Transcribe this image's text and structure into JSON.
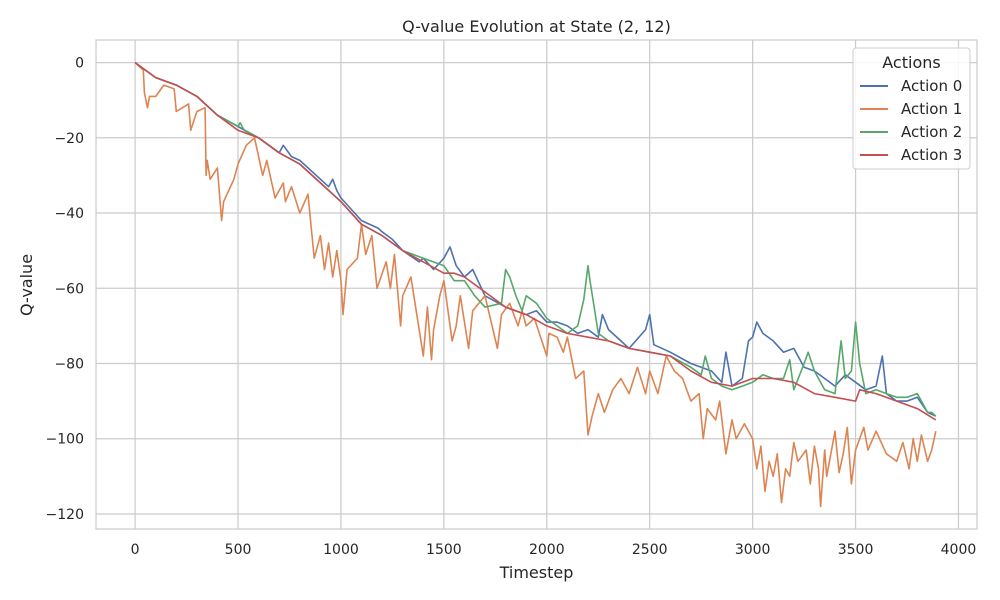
{
  "chart_data": {
    "type": "line",
    "title": "Q-value Evolution at State (2, 12)",
    "xlabel": "Timestep",
    "ylabel": "Q-value",
    "xlim": [
      -190,
      4090
    ],
    "ylim": [
      -124,
      6
    ],
    "xticks": [
      0,
      500,
      1000,
      1500,
      2000,
      2500,
      3000,
      3500,
      4000
    ],
    "yticks": [
      0,
      -20,
      -40,
      -60,
      -80,
      -100,
      -120
    ],
    "grid": true,
    "legend": {
      "title": "Actions",
      "position": "top-right"
    },
    "colors": {
      "Action 0": "#4c72b0",
      "Action 1": "#dd8452",
      "Action 2": "#55a868",
      "Action 3": "#c44e52"
    },
    "series": [
      {
        "name": "Action 0",
        "x": [
          0,
          100,
          200,
          300,
          400,
          500,
          600,
          700,
          720,
          760,
          800,
          900,
          940,
          960,
          980,
          1000,
          1100,
          1180,
          1200,
          1250,
          1300,
          1380,
          1400,
          1450,
          1500,
          1530,
          1560,
          1600,
          1640,
          1700,
          1800,
          1900,
          1950,
          2000,
          2050,
          2100,
          2150,
          2200,
          2250,
          2270,
          2300,
          2400,
          2480,
          2500,
          2520,
          2600,
          2700,
          2800,
          2850,
          2870,
          2900,
          2950,
          2980,
          3000,
          3020,
          3050,
          3100,
          3150,
          3200,
          3250,
          3300,
          3350,
          3400,
          3450,
          3500,
          3550,
          3600,
          3630,
          3650,
          3700,
          3750,
          3800,
          3850,
          3890
        ],
        "y": [
          0,
          -4,
          -6,
          -9,
          -14,
          -17,
          -20,
          -24,
          -22,
          -25,
          -26,
          -31,
          -33,
          -31,
          -34,
          -36,
          -42,
          -44,
          -45,
          -47,
          -50,
          -53,
          -52,
          -55,
          -52,
          -49,
          -54,
          -57,
          -55,
          -62,
          -65,
          -67,
          -66,
          -69,
          -69,
          -70,
          -72,
          -71,
          -73,
          -67,
          -71,
          -76,
          -71,
          -67,
          -75,
          -77,
          -80,
          -82,
          -85,
          -77,
          -86,
          -84,
          -74,
          -73,
          -69,
          -72,
          -74,
          -77,
          -76,
          -81,
          -82,
          -84,
          -86,
          -83,
          -85,
          -87,
          -86,
          -78,
          -88,
          -90,
          -90,
          -89,
          -93,
          -94
        ]
      },
      {
        "name": "Action 1",
        "x": [
          0,
          40,
          45,
          60,
          70,
          100,
          140,
          190,
          200,
          260,
          270,
          300,
          340,
          345,
          350,
          365,
          400,
          420,
          430,
          480,
          500,
          540,
          580,
          620,
          640,
          680,
          720,
          730,
          760,
          800,
          840,
          870,
          900,
          920,
          940,
          960,
          980,
          1000,
          1010,
          1030,
          1080,
          1100,
          1120,
          1150,
          1175,
          1220,
          1240,
          1260,
          1290,
          1300,
          1340,
          1400,
          1420,
          1440,
          1450,
          1480,
          1500,
          1540,
          1560,
          1580,
          1620,
          1640,
          1700,
          1760,
          1780,
          1820,
          1860,
          1880,
          1900,
          1940,
          2000,
          2010,
          2050,
          2080,
          2100,
          2140,
          2180,
          2200,
          2220,
          2250,
          2280,
          2320,
          2360,
          2400,
          2440,
          2480,
          2500,
          2540,
          2580,
          2620,
          2660,
          2700,
          2740,
          2760,
          2780,
          2820,
          2840,
          2870,
          2900,
          2920,
          2960,
          3000,
          3020,
          3040,
          3060,
          3080,
          3100,
          3120,
          3140,
          3160,
          3180,
          3200,
          3220,
          3260,
          3280,
          3300,
          3320,
          3330,
          3350,
          3360,
          3400,
          3420,
          3440,
          3460,
          3480,
          3500,
          3540,
          3560,
          3600,
          3650,
          3700,
          3730,
          3760,
          3780,
          3800,
          3820,
          3850,
          3870,
          3890
        ],
        "y": [
          0,
          -2,
          -8,
          -12,
          -9,
          -9,
          -6,
          -7,
          -13,
          -11,
          -18,
          -13,
          -12,
          -30,
          -26,
          -31,
          -28,
          -42,
          -37,
          -31,
          -27,
          -22,
          -20,
          -30,
          -26,
          -36,
          -32,
          -37,
          -33,
          -40,
          -35,
          -52,
          -46,
          -55,
          -48,
          -57,
          -50,
          -58,
          -67,
          -55,
          -52,
          -43,
          -51,
          -46,
          -60,
          -53,
          -60,
          -51,
          -70,
          -62,
          -57,
          -78,
          -65,
          -79,
          -71,
          -62,
          -58,
          -74,
          -70,
          -62,
          -76,
          -66,
          -62,
          -76,
          -67,
          -64,
          -70,
          -66,
          -70,
          -68,
          -78,
          -72,
          -73,
          -77,
          -73,
          -84,
          -82,
          -99,
          -94,
          -88,
          -93,
          -87,
          -84,
          -88,
          -81,
          -88,
          -82,
          -88,
          -78,
          -82,
          -84,
          -90,
          -88,
          -100,
          -92,
          -95,
          -90,
          -104,
          -95,
          -100,
          -96,
          -100,
          -108,
          -102,
          -114,
          -106,
          -110,
          -104,
          -117,
          -108,
          -110,
          -101,
          -106,
          -103,
          -112,
          -102,
          -108,
          -118,
          -103,
          -110,
          -98,
          -109,
          -104,
          -97,
          -112,
          -103,
          -97,
          -103,
          -98,
          -104,
          -106,
          -101,
          -108,
          -100,
          -106,
          -99,
          -106,
          -103,
          -98
        ]
      },
      {
        "name": "Action 2",
        "x": [
          0,
          100,
          200,
          300,
          400,
          500,
          510,
          530,
          600,
          700,
          800,
          900,
          1000,
          1100,
          1200,
          1300,
          1400,
          1500,
          1550,
          1600,
          1650,
          1700,
          1780,
          1800,
          1820,
          1850,
          1880,
          1900,
          1950,
          2000,
          2100,
          2150,
          2180,
          2200,
          2210,
          2250,
          2300,
          2400,
          2500,
          2600,
          2700,
          2750,
          2770,
          2800,
          2850,
          2900,
          2950,
          3000,
          3050,
          3100,
          3150,
          3180,
          3200,
          3250,
          3270,
          3300,
          3350,
          3400,
          3430,
          3450,
          3480,
          3500,
          3520,
          3550,
          3600,
          3650,
          3700,
          3750,
          3800,
          3850,
          3870,
          3890
        ],
        "y": [
          0,
          -4,
          -6,
          -9,
          -14,
          -17,
          -16,
          -18,
          -20,
          -24,
          -27,
          -32,
          -37,
          -43,
          -46,
          -50,
          -52,
          -54,
          -58,
          -58,
          -62,
          -65,
          -64,
          -55,
          -57,
          -62,
          -66,
          -62,
          -64,
          -68,
          -72,
          -70,
          -63,
          -54,
          -58,
          -72,
          -74,
          -76,
          -77,
          -78,
          -81,
          -83,
          -78,
          -84,
          -86,
          -87,
          -86,
          -85,
          -83,
          -84,
          -84,
          -79,
          -87,
          -80,
          -77,
          -82,
          -87,
          -88,
          -74,
          -84,
          -82,
          -69,
          -80,
          -88,
          -87,
          -88,
          -89,
          -89,
          -88,
          -93,
          -93,
          -94
        ]
      },
      {
        "name": "Action 3",
        "x": [
          0,
          100,
          200,
          300,
          400,
          500,
          600,
          700,
          800,
          900,
          1000,
          1100,
          1200,
          1300,
          1400,
          1500,
          1550,
          1600,
          1700,
          1800,
          1900,
          2000,
          2100,
          2200,
          2300,
          2400,
          2500,
          2600,
          2700,
          2800,
          2900,
          3000,
          3050,
          3100,
          3200,
          3300,
          3400,
          3500,
          3520,
          3600,
          3700,
          3800,
          3890
        ],
        "y": [
          0,
          -4,
          -6,
          -9,
          -14,
          -18,
          -20,
          -24,
          -27,
          -32,
          -37,
          -43,
          -46,
          -50,
          -53,
          -56,
          -56,
          -57,
          -61,
          -65,
          -67,
          -70,
          -72,
          -73,
          -74,
          -76,
          -77,
          -78,
          -82,
          -85,
          -86,
          -84,
          -84,
          -84,
          -85,
          -88,
          -89,
          -90,
          -87,
          -88,
          -90,
          -92,
          -95
        ]
      }
    ]
  }
}
